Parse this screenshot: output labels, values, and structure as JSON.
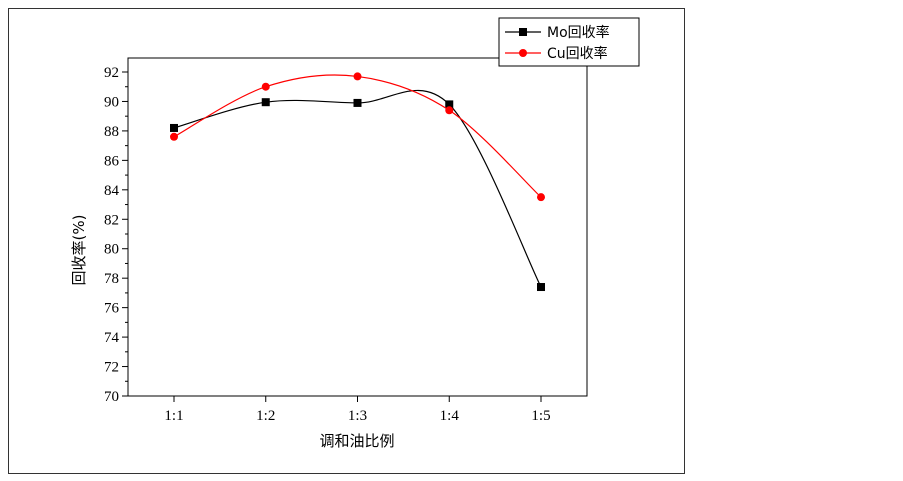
{
  "chart_data": {
    "type": "line",
    "categories": [
      "1:1",
      "1:2",
      "1:3",
      "1:4",
      "1:5"
    ],
    "series": [
      {
        "name": "Mo回收率",
        "color": "#000000",
        "marker": "square",
        "values": [
          88.2,
          89.95,
          89.9,
          89.8,
          77.4
        ]
      },
      {
        "name": "Cu回收率",
        "color": "#ff0000",
        "marker": "circle",
        "values": [
          87.6,
          91.0,
          91.7,
          89.4,
          83.5
        ]
      }
    ],
    "xlabel": "调和油比例",
    "ylabel": "回收率(%)",
    "ylim": [
      70,
      92
    ],
    "yticks": [
      70,
      72,
      74,
      76,
      78,
      80,
      82,
      84,
      86,
      88,
      90,
      92
    ],
    "legend_position": "top-right",
    "grid": false
  }
}
